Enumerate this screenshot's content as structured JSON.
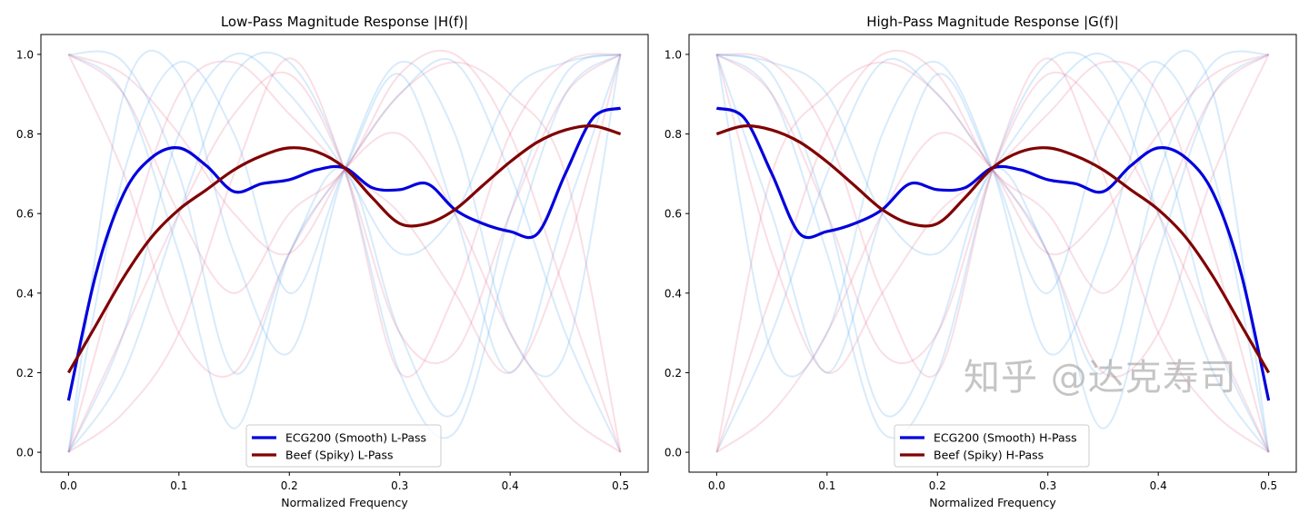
{
  "watermark": "知乎 @达克寿司",
  "colors": {
    "faint_blue": "#4da3ee",
    "faint_red": "#e06080",
    "smooth": "#0000dd",
    "spiky": "#800000"
  },
  "chart_data": [
    {
      "type": "line",
      "title": "Low-Pass Magnitude Response |H(f)|",
      "xlabel": "Normalized Frequency",
      "ylabel": "",
      "xlim": [
        -0.025,
        0.525
      ],
      "ylim": [
        -0.05,
        1.05
      ],
      "xticks": [
        "0.0",
        "0.1",
        "0.2",
        "0.3",
        "0.4",
        "0.5"
      ],
      "yticks": [
        "0.0",
        "0.2",
        "0.4",
        "0.6",
        "0.8",
        "1.0"
      ],
      "grid": false,
      "legend_position": "lower-center",
      "x": [
        0,
        0.025,
        0.05,
        0.075,
        0.1,
        0.125,
        0.15,
        0.175,
        0.2,
        0.225,
        0.25,
        0.275,
        0.3,
        0.325,
        0.35,
        0.375,
        0.4,
        0.425,
        0.45,
        0.475,
        0.5
      ],
      "series": [
        {
          "name": "ECG200 (Smooth) L-Pass",
          "color": "#0000dd",
          "values": [
            0.13,
            0.45,
            0.65,
            0.74,
            0.765,
            0.72,
            0.655,
            0.675,
            0.685,
            0.71,
            0.715,
            0.665,
            0.66,
            0.675,
            0.61,
            0.575,
            0.555,
            0.55,
            0.7,
            0.84,
            0.865
          ]
        },
        {
          "name": "Beef (Spiky) L-Pass",
          "color": "#800000",
          "values": [
            0.2,
            0.32,
            0.44,
            0.54,
            0.61,
            0.66,
            0.71,
            0.745,
            0.765,
            0.755,
            0.715,
            0.64,
            0.575,
            0.575,
            0.61,
            0.67,
            0.73,
            0.78,
            0.81,
            0.82,
            0.8
          ]
        }
      ],
      "background_x": [
        0,
        0.05,
        0.1,
        0.15,
        0.2,
        0.25,
        0.3,
        0.35,
        0.4,
        0.45,
        0.5
      ],
      "background_series": {
        "blue": [
          [
            0,
            0.7,
            0.98,
            0.8,
            0.4,
            0.71,
            0.95,
            0.6,
            0.2,
            0.6,
            1
          ],
          [
            1,
            0.98,
            0.7,
            0.2,
            0.5,
            0.71,
            0.3,
            0.1,
            0.6,
            0.95,
            1
          ],
          [
            0,
            0.3,
            0.8,
            1,
            0.9,
            0.71,
            0.5,
            0.6,
            0.9,
            0.98,
            1
          ],
          [
            1,
            0.9,
            0.5,
            0.06,
            0.5,
            0.71,
            0.9,
            0.98,
            0.7,
            0.3,
            0
          ],
          [
            0,
            0.9,
            0.95,
            0.5,
            0.25,
            0.71,
            0.98,
            0.8,
            0.3,
            0.25,
            1
          ],
          [
            0,
            0.2,
            0.6,
            0.95,
            0.98,
            0.71,
            0.2,
            0.05,
            0.5,
            0.9,
            1
          ]
        ],
        "red": [
          [
            1,
            0.95,
            0.8,
            0.6,
            0.5,
            0.71,
            0.9,
            0.98,
            0.9,
            0.7,
            0
          ],
          [
            0,
            0.3,
            0.6,
            0.85,
            0.95,
            0.71,
            0.3,
            0.25,
            0.6,
            0.9,
            1
          ],
          [
            1,
            0.7,
            0.3,
            0.2,
            0.5,
            0.71,
            0.8,
            0.6,
            0.3,
            0.1,
            0
          ],
          [
            0,
            0.1,
            0.3,
            0.7,
            0.99,
            0.71,
            0.2,
            0.4,
            0.8,
            0.98,
            1
          ],
          [
            1,
            0.9,
            0.6,
            0.4,
            0.6,
            0.71,
            0.95,
            1,
            0.8,
            0.4,
            0
          ],
          [
            0,
            0.5,
            0.9,
            0.98,
            0.85,
            0.71,
            0.6,
            0.4,
            0.2,
            0.5,
            1
          ]
        ]
      }
    },
    {
      "type": "line",
      "title": "High-Pass Magnitude Response |G(f)|",
      "xlabel": "Normalized Frequency",
      "ylabel": "",
      "xlim": [
        -0.025,
        0.525
      ],
      "ylim": [
        -0.05,
        1.05
      ],
      "xticks": [
        "0.0",
        "0.1",
        "0.2",
        "0.3",
        "0.4",
        "0.5"
      ],
      "yticks": [
        "0.0",
        "0.2",
        "0.4",
        "0.6",
        "0.8",
        "1.0"
      ],
      "grid": false,
      "legend_position": "lower-center",
      "x": [
        0,
        0.025,
        0.05,
        0.075,
        0.1,
        0.125,
        0.15,
        0.175,
        0.2,
        0.225,
        0.25,
        0.275,
        0.3,
        0.325,
        0.35,
        0.375,
        0.4,
        0.425,
        0.45,
        0.475,
        0.5
      ],
      "series": [
        {
          "name": "ECG200 (Smooth) H-Pass",
          "color": "#0000dd",
          "values": [
            0.865,
            0.84,
            0.7,
            0.55,
            0.555,
            0.575,
            0.61,
            0.675,
            0.66,
            0.665,
            0.715,
            0.71,
            0.685,
            0.675,
            0.655,
            0.72,
            0.765,
            0.74,
            0.65,
            0.45,
            0.13
          ]
        },
        {
          "name": "Beef (Spiky) H-Pass",
          "color": "#800000",
          "values": [
            0.8,
            0.82,
            0.81,
            0.78,
            0.73,
            0.67,
            0.61,
            0.575,
            0.575,
            0.64,
            0.715,
            0.755,
            0.765,
            0.745,
            0.71,
            0.66,
            0.61,
            0.54,
            0.44,
            0.32,
            0.2
          ]
        }
      ],
      "background_x": [
        0,
        0.05,
        0.1,
        0.15,
        0.2,
        0.25,
        0.3,
        0.35,
        0.4,
        0.45,
        0.5
      ],
      "background_series": {
        "blue": [
          [
            1,
            0.6,
            0.2,
            0.6,
            0.95,
            0.71,
            0.4,
            0.8,
            0.98,
            0.7,
            0
          ],
          [
            1,
            0.95,
            0.6,
            0.1,
            0.3,
            0.71,
            0.5,
            0.2,
            0.7,
            0.98,
            1
          ],
          [
            1,
            0.98,
            0.9,
            0.6,
            0.5,
            0.71,
            0.9,
            1,
            0.8,
            0.3,
            0
          ],
          [
            0,
            0.3,
            0.7,
            0.98,
            0.9,
            0.71,
            0.5,
            0.06,
            0.5,
            0.9,
            1
          ],
          [
            1,
            0.25,
            0.3,
            0.8,
            0.98,
            0.71,
            0.25,
            0.5,
            0.95,
            0.9,
            0
          ],
          [
            1,
            0.9,
            0.5,
            0.05,
            0.2,
            0.71,
            0.98,
            0.95,
            0.6,
            0.2,
            0
          ]
        ],
        "red": [
          [
            0,
            0.7,
            0.9,
            0.98,
            0.9,
            0.71,
            0.5,
            0.6,
            0.8,
            0.95,
            1
          ],
          [
            1,
            0.9,
            0.6,
            0.25,
            0.3,
            0.71,
            0.95,
            0.85,
            0.6,
            0.3,
            0
          ],
          [
            0,
            0.1,
            0.3,
            0.6,
            0.8,
            0.71,
            0.5,
            0.2,
            0.3,
            0.7,
            1
          ],
          [
            1,
            0.98,
            0.8,
            0.4,
            0.2,
            0.71,
            0.99,
            0.7,
            0.3,
            0.1,
            0
          ],
          [
            0,
            0.4,
            0.8,
            1,
            0.95,
            0.71,
            0.6,
            0.4,
            0.6,
            0.9,
            1
          ],
          [
            1,
            0.5,
            0.2,
            0.4,
            0.6,
            0.71,
            0.85,
            0.98,
            0.9,
            0.5,
            0
          ]
        ]
      }
    }
  ]
}
